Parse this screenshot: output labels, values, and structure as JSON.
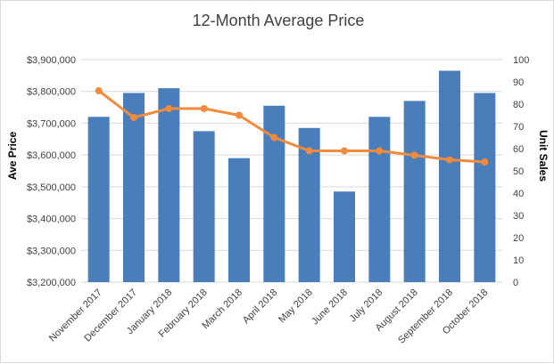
{
  "chart_data": {
    "type": "bar",
    "title": "12-Month Average Price",
    "xlabel": "",
    "ylabel": "Ave Price",
    "y2label": "Unit Sales",
    "categories": [
      "November 2017",
      "December 2017",
      "January 2018",
      "February 2018",
      "March 2018",
      "April 2018",
      "May 2018",
      "June 2018",
      "July 2018",
      "August 2018",
      "September 2018",
      "October 2018"
    ],
    "series": [
      {
        "type": "bar",
        "axis": "left",
        "color": "#4a7ebb",
        "values": [
          3720000,
          3795000,
          3810000,
          3675000,
          3590000,
          3755000,
          3685000,
          3485000,
          3720000,
          3770000,
          3865000,
          3795000
        ]
      },
      {
        "type": "line",
        "axis": "right",
        "color": "#f08a3c",
        "values": [
          86,
          74,
          78,
          78,
          75,
          65,
          59,
          59,
          59,
          57,
          55,
          54
        ]
      }
    ],
    "ylim": [
      3200000,
      3900000
    ],
    "y2lim": [
      0,
      100
    ],
    "yticks": [
      "$3,200,000",
      "$3,300,000",
      "$3,400,000",
      "$3,500,000",
      "$3,600,000",
      "$3,700,000",
      "$3,800,000",
      "$3,900,000"
    ],
    "y2ticks": [
      "0",
      "10",
      "20",
      "30",
      "40",
      "50",
      "60",
      "70",
      "80",
      "90",
      "100"
    ],
    "grid": true,
    "legend": "none"
  }
}
